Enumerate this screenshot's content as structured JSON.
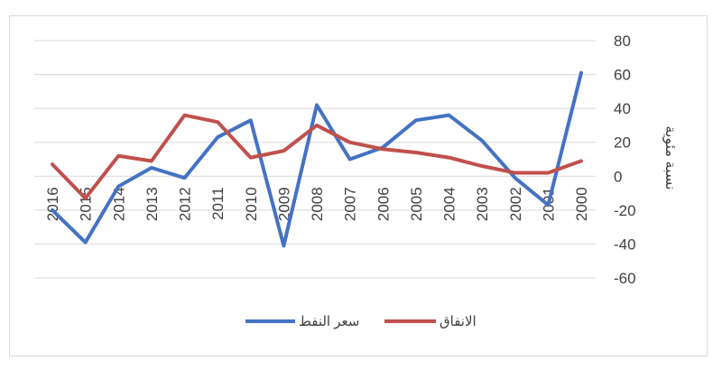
{
  "chart_data": {
    "type": "line",
    "ylabel": "نسبة مئوية",
    "ylim": [
      -60,
      80
    ],
    "y_ticks": [
      80,
      60,
      40,
      20,
      0,
      -20,
      -40,
      -60
    ],
    "y_axis_position": "right",
    "grid": true,
    "legend_position": "bottom",
    "categories": [
      "2016",
      "2015",
      "2014",
      "2013",
      "2012",
      "2011",
      "2010",
      "2009",
      "2008",
      "2007",
      "2006",
      "2005",
      "2004",
      "2003",
      "2002",
      "2001",
      "2000"
    ],
    "series": [
      {
        "name": "سعر النفط",
        "color": "#4472c4",
        "values": [
          -20,
          -39,
          -6,
          5,
          -1,
          23,
          33,
          -41,
          42,
          10,
          17,
          33,
          36,
          21,
          -1,
          -17,
          61
        ]
      },
      {
        "name": "الانفاق",
        "color": "#c0504d",
        "values": [
          7,
          -13,
          12,
          9,
          36,
          32,
          11,
          15,
          30,
          20,
          16,
          14,
          11,
          6,
          2,
          2,
          9
        ]
      }
    ]
  }
}
